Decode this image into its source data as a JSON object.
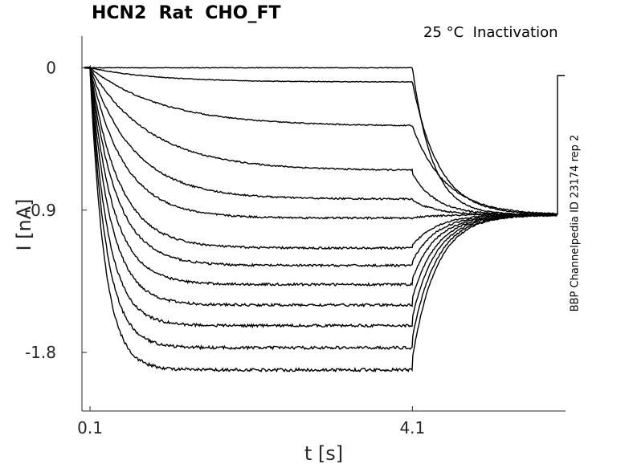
{
  "chart_data": {
    "type": "line",
    "title": "HCN2  Rat  CHO_FT",
    "annotation": "25 °C  Inactivation",
    "side_label": "BBP Channelpedia ID 23174 rep 2",
    "xlabel": "t [s]",
    "ylabel": "I [nA]",
    "xlim": [
      0.0,
      6.0
    ],
    "ylim": [
      -2.17,
      0.2
    ],
    "xticks": [
      0.1,
      4.1
    ],
    "xtick_labels": [
      "0.1",
      "4.1"
    ],
    "yticks": [
      0,
      -0.9,
      -1.8
    ],
    "ytick_labels": [
      "0",
      "-0.9",
      "-1.8"
    ],
    "grid": false,
    "step_start": 0.1,
    "step_end": 4.1,
    "trace_end": 5.9,
    "tail_level": -0.93,
    "series": [
      {
        "ss": 0.0,
        "tau": 0.5
      },
      {
        "ss": -0.09,
        "tau": 0.8
      },
      {
        "ss": -0.37,
        "tau": 0.9
      },
      {
        "ss": -0.65,
        "tau": 0.75
      },
      {
        "ss": -0.83,
        "tau": 0.55
      },
      {
        "ss": -0.95,
        "tau": 0.42
      },
      {
        "ss": -1.14,
        "tau": 0.36
      },
      {
        "ss": -1.25,
        "tau": 0.32
      },
      {
        "ss": -1.37,
        "tau": 0.28
      },
      {
        "ss": -1.5,
        "tau": 0.25
      },
      {
        "ss": -1.63,
        "tau": 0.22
      },
      {
        "ss": -1.77,
        "tau": 0.2
      },
      {
        "ss": -1.91,
        "tau": 0.18
      }
    ],
    "colors": {
      "trace": "#000000",
      "axis": "#262626"
    }
  }
}
